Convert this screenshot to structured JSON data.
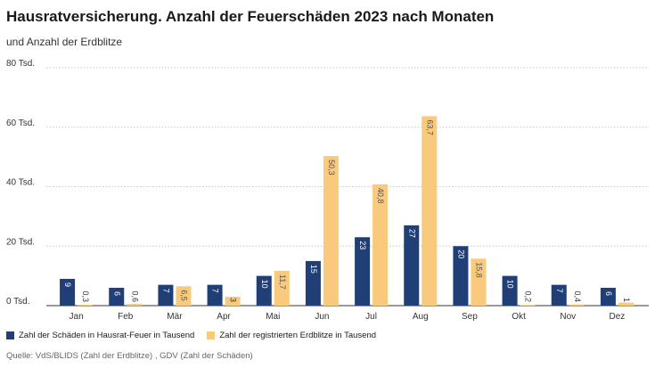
{
  "colors": {
    "series1": "#1f3f76",
    "series2": "#f9c97c",
    "grid": "#c8c8c8",
    "axis": "#333333"
  },
  "chart_data": {
    "type": "bar",
    "title": "Hausratversicherung. Anzahl der Feuerschäden 2023 nach Monaten",
    "subtitle": "und Anzahl der Erdblitze",
    "categories": [
      "Jan",
      "Feb",
      "Mär",
      "Apr",
      "Mai",
      "Jun",
      "Jul",
      "Aug",
      "Sep",
      "Okt",
      "Nov",
      "Dez"
    ],
    "series": [
      {
        "name": "Zahl der Schäden in Hausrat-Feuer in Tausend",
        "values": [
          9,
          6,
          7,
          7,
          10,
          15,
          23,
          27,
          20,
          10,
          7,
          6
        ],
        "labels": [
          "9",
          "6",
          "7",
          "7",
          "10",
          "15",
          "23",
          "27",
          "20",
          "10",
          "7",
          "6"
        ]
      },
      {
        "name": "Zahl der registrierten Erdblitze in Tausend",
        "values": [
          0.3,
          0.6,
          6.5,
          3,
          11.7,
          50.3,
          40.8,
          63.7,
          15.8,
          0.2,
          0.4,
          1
        ],
        "labels": [
          "0,3",
          "0,6",
          "6,5",
          "3",
          "11,7",
          "50,3",
          "40,8",
          "63,7",
          "15,8",
          "0,2",
          "0,4",
          "1"
        ]
      }
    ],
    "yticks": [
      0,
      20,
      40,
      60,
      80
    ],
    "ytick_labels": [
      "0 Tsd.",
      "20 Tsd.",
      "40 Tsd.",
      "60 Tsd.",
      "80 Tsd."
    ],
    "ylim": [
      0,
      80
    ],
    "grid": true,
    "legend_position": "bottom-left"
  },
  "source": "Quelle: VdS/BLIDS (Zahl der Erdblitze) , GDV (Zahl der Schäden)"
}
